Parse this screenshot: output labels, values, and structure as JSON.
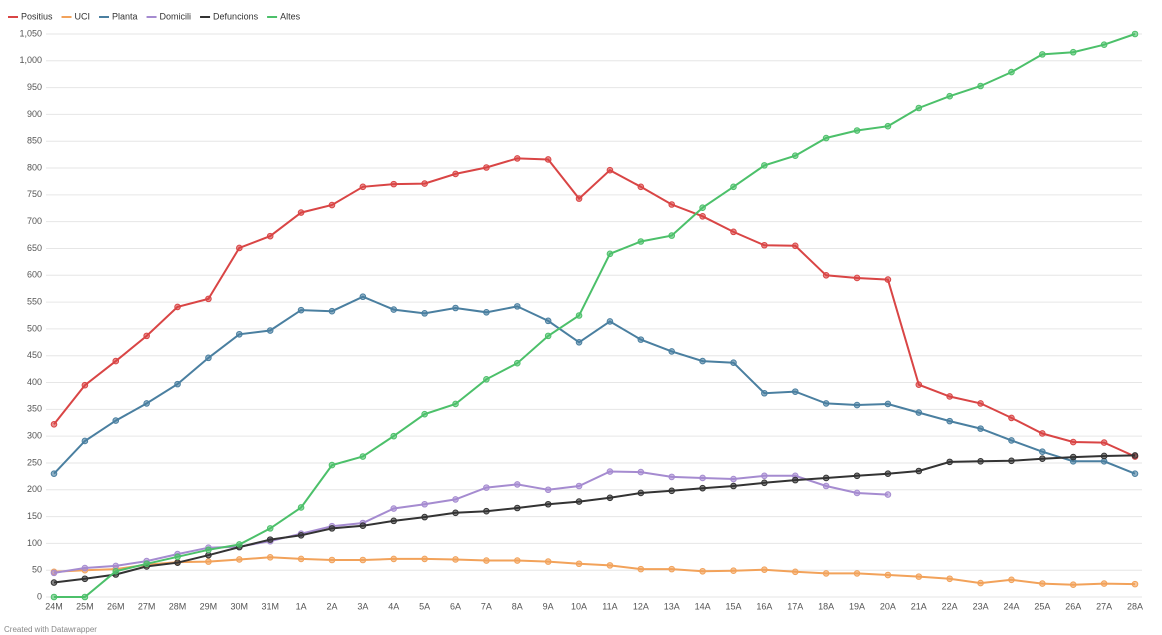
{
  "chart_data": {
    "type": "line",
    "categories": [
      "24M",
      "25M",
      "26M",
      "27M",
      "28M",
      "29M",
      "30M",
      "31M",
      "1A",
      "2A",
      "3A",
      "4A",
      "5A",
      "6A",
      "7A",
      "8A",
      "9A",
      "10A",
      "11A",
      "12A",
      "13A",
      "14A",
      "15A",
      "16A",
      "17A",
      "18A",
      "19A",
      "20A",
      "21A",
      "22A",
      "23A",
      "24A",
      "25A",
      "26A",
      "27A",
      "28A"
    ],
    "series": [
      {
        "name": "Positius",
        "color": "#d94545",
        "values": [
          322,
          395,
          440,
          487,
          541,
          556,
          651,
          673,
          717,
          731,
          765,
          770,
          771,
          789,
          801,
          818,
          816,
          743,
          796,
          765,
          732,
          710,
          681,
          656,
          655,
          600,
          595,
          592,
          396,
          374,
          361,
          334,
          305,
          289,
          288,
          262
        ]
      },
      {
        "name": "UCI",
        "color": "#f2a25a",
        "values": [
          47,
          50,
          52,
          60,
          65,
          66,
          70,
          74,
          71,
          69,
          69,
          71,
          71,
          70,
          68,
          68,
          66,
          62,
          59,
          52,
          52,
          48,
          49,
          51,
          47,
          44,
          44,
          41,
          38,
          34,
          26,
          32,
          25,
          23,
          25,
          24
        ]
      },
      {
        "name": "Planta",
        "color": "#4a7fa0",
        "values": [
          230,
          291,
          329,
          361,
          397,
          446,
          490,
          497,
          535,
          533,
          560,
          536,
          529,
          539,
          531,
          542,
          515,
          475,
          514,
          480,
          458,
          440,
          437,
          380,
          383,
          361,
          358,
          360,
          344,
          328,
          314,
          292,
          271,
          253,
          253,
          230
        ]
      },
      {
        "name": "Domicili",
        "color": "#a58bd0",
        "values": [
          45,
          54,
          58,
          67,
          80,
          92,
          94,
          104,
          118,
          132,
          138,
          165,
          173,
          182,
          204,
          210,
          200,
          207,
          234,
          233,
          224,
          222,
          220,
          226,
          226,
          207,
          194,
          191,
          null,
          null,
          null,
          null,
          null,
          null,
          null,
          null
        ]
      },
      {
        "name": "Defuncions",
        "color": "#333333",
        "values": [
          27,
          34,
          42,
          57,
          64,
          78,
          93,
          107,
          115,
          128,
          133,
          142,
          149,
          157,
          160,
          166,
          173,
          178,
          185,
          194,
          198,
          203,
          207,
          213,
          218,
          222,
          226,
          230,
          235,
          252,
          253,
          254,
          258,
          261,
          263,
          264
        ]
      },
      {
        "name": "Altes",
        "color": "#4cc06a",
        "values": [
          0,
          0,
          48,
          62,
          75,
          88,
          98,
          128,
          167,
          246,
          262,
          300,
          341,
          360,
          406,
          436,
          487,
          525,
          640,
          663,
          674,
          726,
          765,
          805,
          823,
          856,
          870,
          878,
          912,
          934,
          953,
          979,
          1012,
          1016,
          1030,
          1050
        ]
      }
    ],
    "ylim": [
      0,
      1050
    ],
    "yticks": [
      0,
      50,
      100,
      150,
      200,
      250,
      300,
      350,
      400,
      450,
      500,
      550,
      600,
      650,
      700,
      750,
      800,
      850,
      900,
      950,
      {
        "value": 1000,
        "label": "1,000"
      },
      {
        "value": 1050,
        "label": "1,050"
      }
    ],
    "grid": true,
    "legend": "top-left",
    "footer": "Created with Datawrapper"
  }
}
